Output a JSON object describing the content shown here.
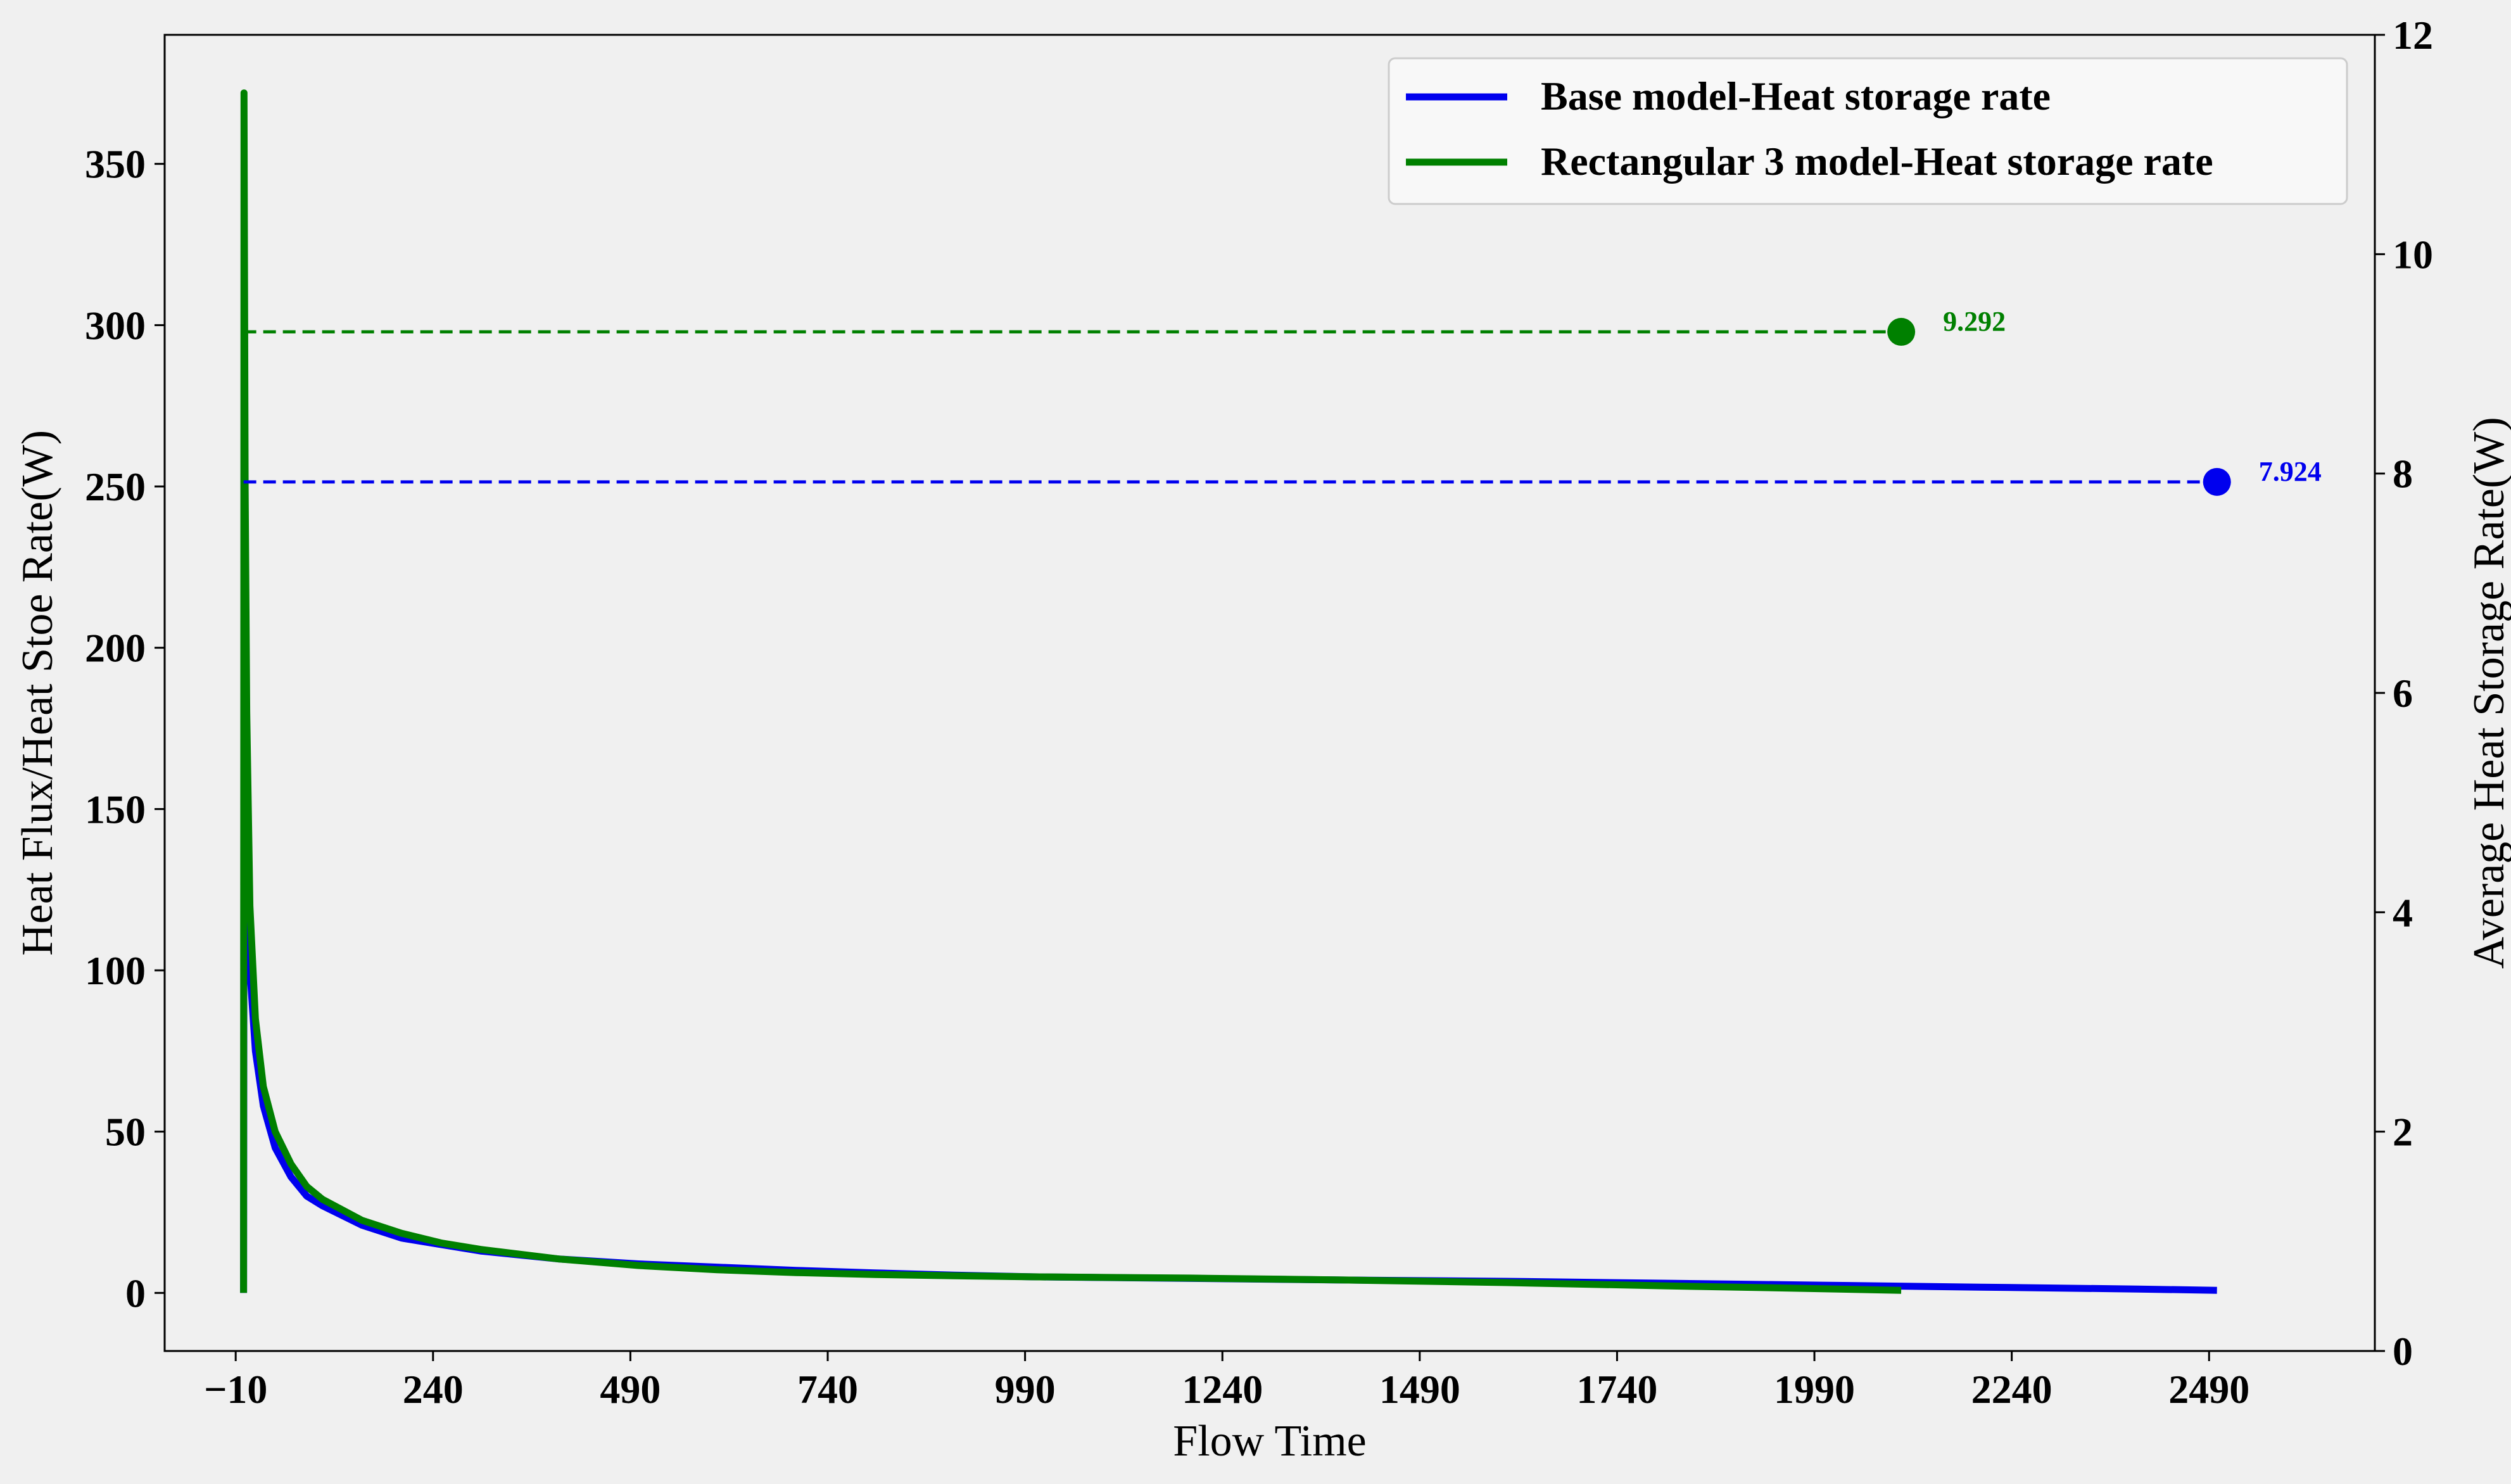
{
  "chart_data": {
    "type": "line",
    "title": "",
    "xlabel": "Flow Time",
    "ylabel": "Heat Flux/Heat Stoe Rate(W)",
    "ylabel_right": "Average Heat Storage Rate(W)",
    "xlim": [
      -100,
      2700
    ],
    "ylim": [
      -18,
      390
    ],
    "ylim_right": [
      0,
      12
    ],
    "xticks": [
      -10,
      240,
      490,
      740,
      990,
      1240,
      1490,
      1740,
      1990,
      2240,
      2490
    ],
    "xtick_labels": [
      "−10",
      "240",
      "490",
      "740",
      "990",
      "1240",
      "1490",
      "1740",
      "1990",
      "2240",
      "2490"
    ],
    "yticks": [
      0,
      50,
      100,
      150,
      200,
      250,
      300,
      350
    ],
    "ytick_labels": [
      "0",
      "50",
      "100",
      "150",
      "200",
      "250",
      "300",
      "350"
    ],
    "yticks_right": [
      0,
      2,
      4,
      6,
      8,
      10,
      12
    ],
    "ytick_labels_right": [
      "0",
      "2",
      "4",
      "6",
      "8",
      "10",
      "12"
    ],
    "grid": false,
    "legend_position": "top-right",
    "series": [
      {
        "name": "Base model-Heat storage rate",
        "color": "#0000ee",
        "axis": "left",
        "x": [
          0,
          0.5,
          1,
          2,
          4,
          8,
          15,
          25,
          40,
          60,
          80,
          100,
          150,
          200,
          250,
          300,
          400,
          500,
          600,
          700,
          800,
          900,
          1000,
          1200,
          1400,
          1600,
          1800,
          2000,
          2200,
          2400,
          2500
        ],
        "y": [
          0,
          150,
          200,
          180,
          140,
          100,
          75,
          58,
          45,
          36,
          30,
          27,
          21,
          17,
          15,
          13,
          10.5,
          9,
          8,
          7,
          6.2,
          5.5,
          5,
          4.5,
          4,
          3.6,
          3,
          2.4,
          1.8,
          1.2,
          0.8
        ]
      },
      {
        "name": "Rectangular 3 model-Heat storage rate",
        "color": "#008000",
        "axis": "left",
        "x": [
          0,
          0.5,
          1,
          2,
          4,
          8,
          15,
          25,
          40,
          60,
          80,
          100,
          150,
          200,
          250,
          300,
          400,
          500,
          600,
          700,
          800,
          900,
          1000,
          1200,
          1400,
          1600,
          1800,
          2000,
          2100
        ],
        "y": [
          0,
          372,
          330,
          250,
          180,
          120,
          85,
          64,
          50,
          40,
          33,
          29,
          22.5,
          18.5,
          15.5,
          13.5,
          10.5,
          8.5,
          7.2,
          6.3,
          5.7,
          5.3,
          5,
          4.6,
          4,
          3.2,
          2.2,
          1.3,
          0.8
        ]
      }
    ],
    "averages": [
      {
        "series": "Base model-Heat storage rate",
        "value": 7.924,
        "label": "7.924",
        "x_start": 0,
        "x_end": 2500,
        "color": "#0000ee"
      },
      {
        "series": "Rectangular 3 model-Heat storage rate",
        "value": 9.292,
        "label": "9.292",
        "x_start": 0,
        "x_end": 2100,
        "color": "#008000"
      }
    ]
  }
}
